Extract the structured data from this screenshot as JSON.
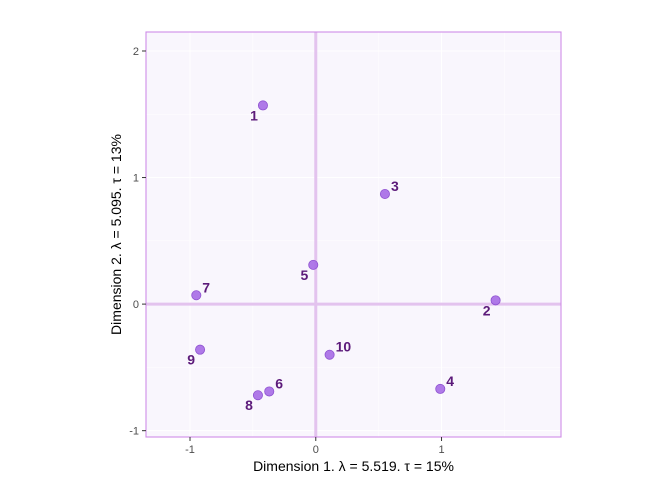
{
  "chart_data": {
    "type": "scatter",
    "xlabel": "Dimension 1.   λ = 5.519.  τ = 15%",
    "ylabel": "Dimension 2.   λ = 5.095.  τ = 13%",
    "xlim": [
      -1.35,
      1.95
    ],
    "ylim": [
      -1.05,
      2.15
    ],
    "x_ticks": [
      -1,
      0,
      1
    ],
    "y_ticks": [
      -1,
      0,
      1,
      2
    ],
    "x_tick_labels": [
      "-1",
      "0",
      "1"
    ],
    "y_tick_labels": [
      "-1",
      "0",
      "1",
      "2"
    ],
    "grid": true,
    "reference_lines": {
      "x": 0,
      "y": 0
    },
    "colors": {
      "panel_background": "#f9f6fd",
      "panel_border": "#cf8ce8",
      "grid": "#ffffff",
      "reference_line": "#e3c3ee",
      "point_fill": "#a66be6",
      "point_stroke": "#8f52d1",
      "label": "#5c1a7a"
    },
    "points": [
      {
        "label": "1",
        "x": -0.42,
        "y": 1.57,
        "label_pos": "bottom-left"
      },
      {
        "label": "2",
        "x": 1.43,
        "y": 0.03,
        "label_pos": "bottom-left"
      },
      {
        "label": "3",
        "x": 0.55,
        "y": 0.87,
        "label_pos": "top-right"
      },
      {
        "label": "4",
        "x": 0.99,
        "y": -0.67,
        "label_pos": "top-right"
      },
      {
        "label": "5",
        "x": -0.02,
        "y": 0.31,
        "label_pos": "bottom-left"
      },
      {
        "label": "6",
        "x": -0.37,
        "y": -0.69,
        "label_pos": "top-right"
      },
      {
        "label": "7",
        "x": -0.95,
        "y": 0.07,
        "label_pos": "top-right"
      },
      {
        "label": "8",
        "x": -0.46,
        "y": -0.72,
        "label_pos": "bottom-left"
      },
      {
        "label": "9",
        "x": -0.92,
        "y": -0.36,
        "label_pos": "bottom-left"
      },
      {
        "label": "10",
        "x": 0.11,
        "y": -0.4,
        "label_pos": "top-right"
      }
    ]
  }
}
